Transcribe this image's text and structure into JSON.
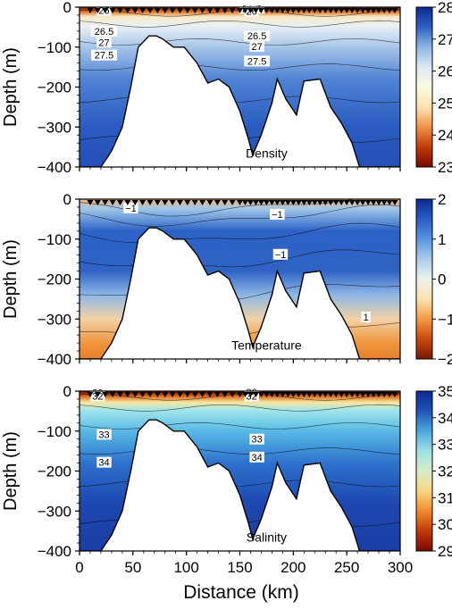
{
  "chart_data": {
    "type": "heatmap",
    "shared_x": {
      "label": "Distance (km)",
      "range": [
        0,
        300
      ],
      "ticks": [
        0,
        50,
        100,
        150,
        200,
        250,
        300
      ]
    },
    "station_markers_km": [
      10,
      17,
      24,
      31,
      38,
      45,
      52,
      59,
      66,
      73,
      80,
      87,
      94,
      101,
      108,
      115,
      122,
      129,
      136,
      143,
      150,
      155,
      160,
      165,
      170,
      175,
      180,
      185,
      190,
      195,
      200,
      205,
      210,
      215,
      220,
      225,
      230,
      235,
      240,
      245,
      250,
      255,
      260,
      265,
      270,
      275,
      280,
      285,
      290,
      295
    ],
    "bathymetry": {
      "distance_km": [
        0,
        20,
        30,
        40,
        48,
        55,
        65,
        72,
        78,
        88,
        98,
        110,
        120,
        130,
        140,
        150,
        158,
        162,
        170,
        180,
        185,
        193,
        203,
        210,
        225,
        235,
        245,
        255,
        262,
        300
      ],
      "depth_m": [
        -400,
        -400,
        -360,
        -300,
        -200,
        -100,
        -72,
        -72,
        -80,
        -100,
        -100,
        -140,
        -190,
        -180,
        -200,
        -260,
        -330,
        -370,
        -320,
        -240,
        -180,
        -230,
        -270,
        -185,
        -180,
        -250,
        -290,
        -340,
        -400,
        -400
      ]
    },
    "panels": [
      {
        "variable": "Density",
        "ylabel": "Depth (m)",
        "ylim": [
          -400,
          0
        ],
        "yticks": [
          0,
          -100,
          -200,
          -300,
          -400
        ],
        "colorbar": {
          "range": [
            23,
            28
          ],
          "ticks": [
            28,
            27,
            26,
            25,
            24,
            23
          ],
          "colors": [
            "#7a0800",
            "#c23a06",
            "#f1924a",
            "#fde2ad",
            "#fafae0",
            "#dce9f3",
            "#8eb6e2",
            "#2d61c1",
            "#0c2a93"
          ]
        },
        "contour_labels": [
          {
            "text": "26",
            "x_km": 23,
            "depth_m": -8
          },
          {
            "text": "26.5",
            "x_km": 23,
            "depth_m": -60
          },
          {
            "text": "27",
            "x_km": 23,
            "depth_m": -88
          },
          {
            "text": "27.5",
            "x_km": 23,
            "depth_m": -120
          },
          {
            "text": "26.5",
            "x_km": 161,
            "depth_m": -3
          },
          {
            "text": "26",
            "x_km": 161,
            "depth_m": -10
          },
          {
            "text": "26.5",
            "x_km": 166,
            "depth_m": -72
          },
          {
            "text": "27",
            "x_km": 166,
            "depth_m": -98
          },
          {
            "text": "27.5",
            "x_km": 166,
            "depth_m": -135
          }
        ]
      },
      {
        "variable": "Temperature",
        "ylabel": "Depth (m)",
        "ylim": [
          -400,
          0
        ],
        "yticks": [
          0,
          -100,
          -200,
          -300,
          -400
        ],
        "colorbar": {
          "range": [
            -2,
            2
          ],
          "ticks": [
            2,
            1,
            0,
            -1,
            -2
          ],
          "colors": [
            "#7a1800",
            "#c84a0b",
            "#f29a44",
            "#fde2ad",
            "#eef1ee",
            "#a9cdec",
            "#5796de",
            "#2a5ec4",
            "#0c2a93"
          ]
        },
        "contour_labels": [
          {
            "text": "−1",
            "x_km": 48,
            "depth_m": -22
          },
          {
            "text": "−1",
            "x_km": 185,
            "depth_m": -38
          },
          {
            "text": "−1",
            "x_km": 188,
            "depth_m": -138
          },
          {
            "text": "1",
            "x_km": 268,
            "depth_m": -295
          }
        ]
      },
      {
        "variable": "Salinity",
        "ylabel": "Depth (m)",
        "ylim": [
          -400,
          0
        ],
        "yticks": [
          0,
          -100,
          -200,
          -300,
          -400
        ],
        "colorbar": {
          "range": [
            29,
            35
          ],
          "ticks": [
            35,
            34,
            33,
            32,
            31,
            30,
            29
          ],
          "colors": [
            "#7a0800",
            "#c23a06",
            "#f08a2e",
            "#f6d780",
            "#d8ecc8",
            "#9fe0e6",
            "#4da7dc",
            "#2054b8",
            "#0c2a93"
          ]
        },
        "contour_labels": [
          {
            "text": "30",
            "x_km": 17,
            "depth_m": -3
          },
          {
            "text": "32",
            "x_km": 17,
            "depth_m": -12
          },
          {
            "text": "33",
            "x_km": 23,
            "depth_m": -108
          },
          {
            "text": "34",
            "x_km": 23,
            "depth_m": -178
          },
          {
            "text": "30",
            "x_km": 161,
            "depth_m": -2
          },
          {
            "text": "32",
            "x_km": 161,
            "depth_m": -12
          },
          {
            "text": "33",
            "x_km": 166,
            "depth_m": -120
          },
          {
            "text": "34",
            "x_km": 166,
            "depth_m": -165
          }
        ]
      }
    ]
  }
}
